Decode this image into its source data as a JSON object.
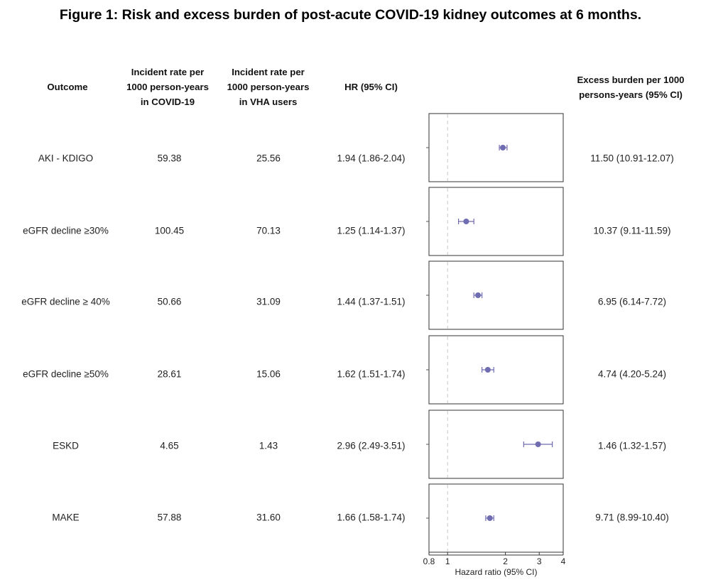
{
  "title": "Figure 1: Risk and excess burden of post-acute COVID-19 kidney outcomes at 6 months.",
  "headers": {
    "outcome": [
      "Outcome"
    ],
    "covid_rate": [
      "Incident rate per",
      "1000 person-years",
      "in COVID-19"
    ],
    "vha_rate": [
      "Incident rate per",
      "1000 person-years",
      "in VHA users"
    ],
    "hr": [
      "HR (95% CI)"
    ],
    "excess": [
      "Excess burden per 1000",
      "persons-years (95% CI)"
    ]
  },
  "rows": [
    {
      "outcome": "AKI - KDIGO",
      "covid_rate": "59.38",
      "vha_rate": "25.56",
      "hr_text": "1.94 (1.86-2.04)",
      "excess": "11.50 (10.91-12.07)"
    },
    {
      "outcome": "eGFR decline ≥30%",
      "covid_rate": "100.45",
      "vha_rate": "70.13",
      "hr_text": "1.25 (1.14-1.37)",
      "excess": "10.37 (9.11-11.59)"
    },
    {
      "outcome": "eGFR decline ≥ 40%",
      "covid_rate": "50.66",
      "vha_rate": "31.09",
      "hr_text": "1.44 (1.37-1.51)",
      "excess": "6.95 (6.14-7.72)"
    },
    {
      "outcome": "eGFR decline ≥50%",
      "covid_rate": "28.61",
      "vha_rate": "15.06",
      "hr_text": "1.62 (1.51-1.74)",
      "excess": "4.74 (4.20-5.24)"
    },
    {
      "outcome": "ESKD",
      "covid_rate": "4.65",
      "vha_rate": "1.43",
      "hr_text": "2.96 (2.49-3.51)",
      "excess": "1.46 (1.32-1.57)"
    },
    {
      "outcome": "MAKE",
      "covid_rate": "57.88",
      "vha_rate": "31.60",
      "hr_text": "1.66 (1.58-1.74)",
      "excess": "9.71 (8.99-10.40)"
    }
  ],
  "chart_data": {
    "type": "scatter",
    "title": "Figure 1: Risk and excess burden of post-acute COVID-19 kidney outcomes at 6 months.",
    "xlabel": "Hazard ratio (95% CI)",
    "xscale": "log",
    "xlim": [
      0.8,
      4
    ],
    "xticks": [
      0.8,
      1,
      2,
      3,
      4
    ],
    "xtick_labels": [
      "0.8",
      "1",
      "2",
      "3",
      "4"
    ],
    "reference_line": 1,
    "categories": [
      "AKI - KDIGO",
      "eGFR decline ≥30%",
      "eGFR decline ≥ 40%",
      "eGFR decline ≥50%",
      "ESKD",
      "MAKE"
    ],
    "series": [
      {
        "values": [
          1.94,
          1.25,
          1.44,
          1.62,
          2.96,
          1.66
        ],
        "ci_low": [
          1.86,
          1.14,
          1.37,
          1.51,
          2.49,
          1.58
        ],
        "ci_high": [
          2.04,
          1.37,
          1.51,
          1.74,
          3.51,
          1.74
        ]
      }
    ],
    "colors": {
      "point": "#6f6cb1",
      "ref_line": "#c8c8c8"
    }
  }
}
